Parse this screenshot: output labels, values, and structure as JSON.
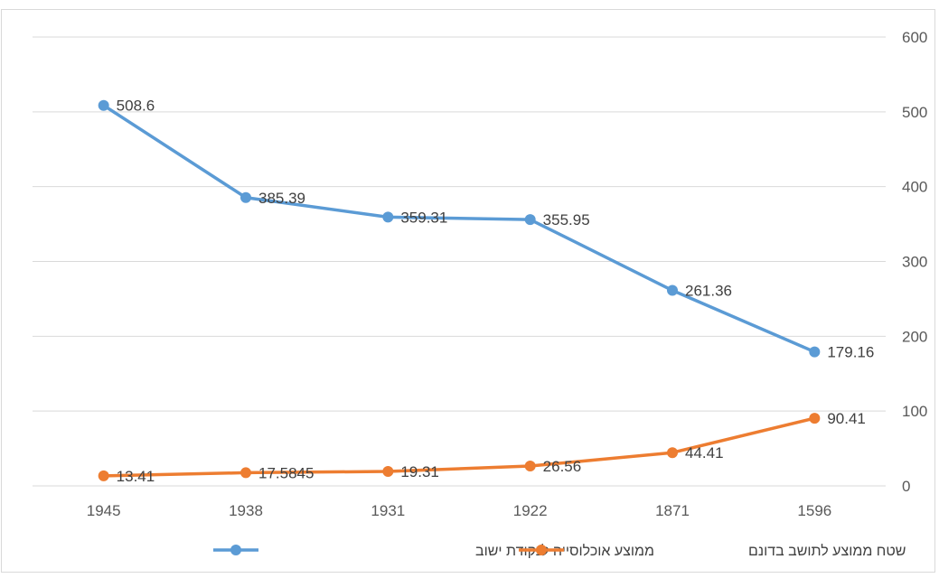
{
  "chart_data": {
    "type": "line",
    "categories": [
      "1945",
      "1938",
      "1931",
      "1922",
      "1871",
      "1596"
    ],
    "series": [
      {
        "name": "ממוצע אוכלוסייה לנקודת ישוב",
        "color": "#5b9bd5",
        "values": [
          508.6,
          385.39,
          359.31,
          355.95,
          261.36,
          179.16
        ],
        "labels": [
          "508.6",
          "385.39",
          "359.31",
          "355.95",
          "261.36",
          "179.16"
        ]
      },
      {
        "name": "שטח ממוצע לתושב בדונם",
        "color": "#ed7d31",
        "values": [
          13.41,
          17.5845,
          19.31,
          26.56,
          44.41,
          90.41
        ],
        "labels": [
          "13.41",
          "17.5845",
          "19.31",
          "26.56",
          "44.41",
          "90.41"
        ]
      }
    ],
    "ylim": [
      0,
      600
    ],
    "yticks": [
      "0",
      "100",
      "200",
      "300",
      "400",
      "500",
      "600"
    ],
    "y_axis_side": "right",
    "grid": true,
    "legend_position": "bottom"
  }
}
